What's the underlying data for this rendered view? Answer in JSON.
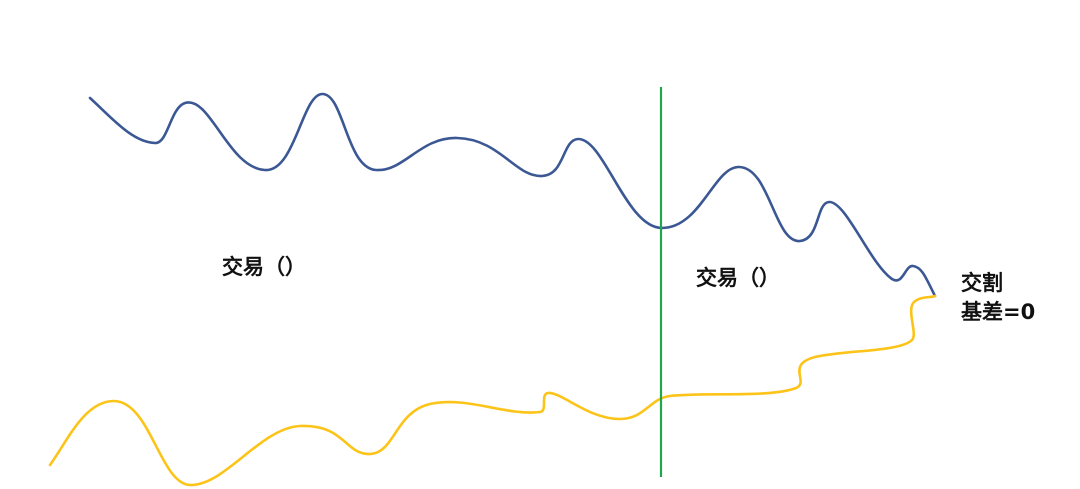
{
  "diagram": {
    "labels": {
      "left_phase": "交易（）",
      "right_phase": "交易（）",
      "delivery": "交割",
      "basis_zero": "基差=0"
    },
    "colors": {
      "upper_curve": "#3B5894",
      "lower_curve": "#FCC419",
      "divider": "#1FA84A",
      "text": "#111111",
      "background": "#FFFFFF"
    }
  }
}
